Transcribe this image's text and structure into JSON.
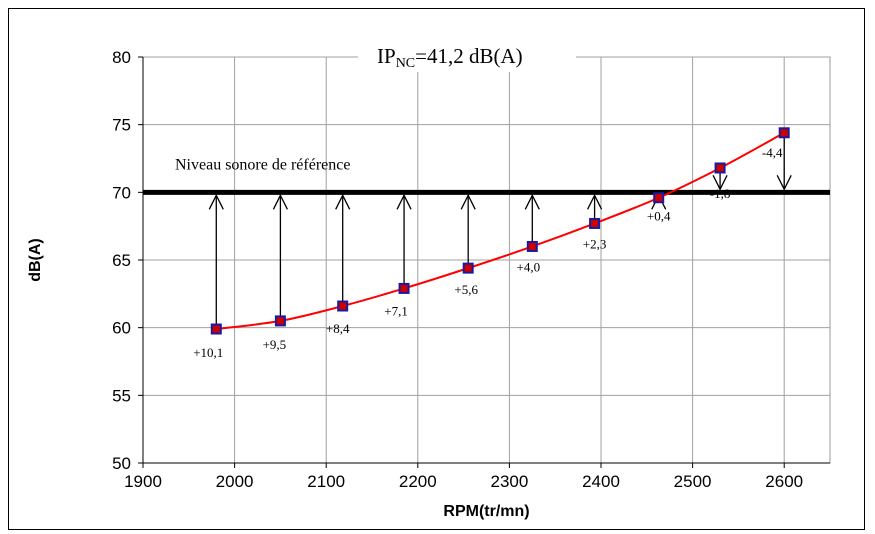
{
  "chart_data": {
    "type": "line",
    "title": "IP",
    "title_subscript": "NC",
    "title_suffix": "=41,2 dB(A)",
    "xlabel": "RPM(tr/mn)",
    "ylabel": "dB(A)",
    "xlim": [
      1900,
      2650
    ],
    "ylim": [
      50,
      80
    ],
    "xticks": [
      1900,
      2000,
      2100,
      2200,
      2300,
      2400,
      2500,
      2600
    ],
    "yticks": [
      50,
      55,
      60,
      65,
      70,
      75,
      80
    ],
    "grid": true,
    "reference": {
      "y": 70,
      "label": "Niveau sonore de référence"
    },
    "series": [
      {
        "x": [
          1980,
          2050,
          2118,
          2185,
          2255,
          2325,
          2393,
          2463,
          2530,
          2600
        ],
        "y": [
          59.9,
          60.5,
          61.6,
          62.9,
          64.4,
          66.0,
          67.7,
          69.6,
          71.8,
          74.4
        ],
        "color": "#ff0000",
        "marker_fill": "#cc0000",
        "marker_edge": "#1a1aa0"
      }
    ],
    "point_labels": [
      "+10,1",
      "+9,5",
      "+8,4",
      "+7,1",
      "+5,6",
      "+4,0",
      "+2,3",
      "+0,4",
      "-1,8",
      "-4,4"
    ]
  }
}
